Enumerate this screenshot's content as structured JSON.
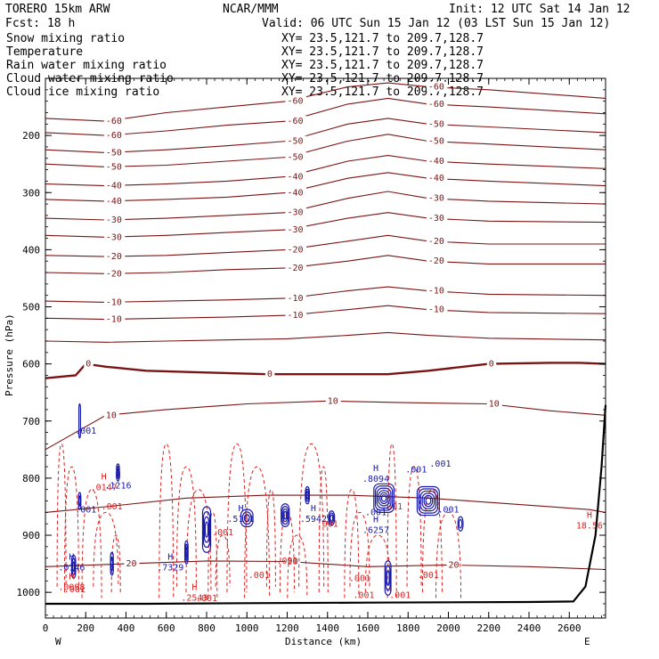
{
  "header": {
    "model": "TORERO  15km ARW",
    "org": "NCAR/MMM",
    "init": "Init: 12 UTC Sat 14 Jan 12",
    "fcst": "Fcst:   18 h",
    "valid": "Valid: 06 UTC Sun 15 Jan 12 (03 LST Sun 15 Jan 12)"
  },
  "legend": [
    {
      "label": "Snow mixing ratio",
      "color": "#000000",
      "xy": "XY=  23.5,121.7 to 209.7,128.7",
      "xy_color": "#000000"
    },
    {
      "label": "Temperature",
      "color": "#cc0000",
      "xy": "XY=  23.5,121.7 to 209.7,128.7",
      "xy_color": "#cc0000"
    },
    {
      "label": "Rain water mixing ratio",
      "color": "#cc0000",
      "xy": "XY=  23.5,121.7 to 209.7,128.7",
      "xy_color": "#cc0000"
    },
    {
      "label": "Cloud water mixing ratio",
      "color": "#1a1aaa",
      "xy": "XY=  23.5,121.7 to 209.7,128.7",
      "xy_color": "#1a1aaa"
    },
    {
      "label": "Cloud ice mixing ratio",
      "color": "#000000",
      "xy": "XY=  23.5,121.7 to 209.7,128.7",
      "xy_color": "#000000"
    }
  ],
  "chart_data": {
    "type": "contour-cross-section",
    "xlabel": "Distance (km)",
    "ylabel": "Pressure (hPa)",
    "xlim": [
      0,
      2780
    ],
    "ylim": [
      1045,
      100
    ],
    "x_ticks": [
      0,
      200,
      400,
      600,
      800,
      1000,
      1200,
      1400,
      1600,
      1800,
      2000,
      2200,
      2400,
      2600
    ],
    "y_ticks": [
      200,
      300,
      400,
      500,
      600,
      700,
      800,
      900,
      1000
    ],
    "end_labels": {
      "left": "W",
      "right": "E"
    },
    "colors": {
      "temperature": "#7a1414",
      "rain": "#dd2222",
      "cloud_water": "#1a1aaa",
      "terrain": "#000000"
    },
    "temperature_contours": [
      {
        "value": -60,
        "label": "-60",
        "points": [
          [
            0,
            170
          ],
          [
            300,
            175
          ],
          [
            600,
            160
          ],
          [
            900,
            150
          ],
          [
            1200,
            140
          ],
          [
            1500,
            115
          ],
          [
            1700,
            108
          ],
          [
            1900,
            115
          ],
          [
            2200,
            120
          ],
          [
            2780,
            135
          ]
        ]
      },
      {
        "value": -60,
        "label": "-60",
        "points": [
          [
            0,
            195
          ],
          [
            300,
            200
          ],
          [
            600,
            192
          ],
          [
            900,
            182
          ],
          [
            1200,
            175
          ],
          [
            1500,
            145
          ],
          [
            1700,
            135
          ],
          [
            1900,
            145
          ],
          [
            2200,
            150
          ],
          [
            2780,
            162
          ]
        ]
      },
      {
        "value": -50,
        "label": "-50",
        "points": [
          [
            0,
            225
          ],
          [
            300,
            230
          ],
          [
            600,
            225
          ],
          [
            900,
            218
          ],
          [
            1200,
            210
          ],
          [
            1500,
            180
          ],
          [
            1700,
            170
          ],
          [
            1900,
            180
          ],
          [
            2200,
            185
          ],
          [
            2780,
            195
          ]
        ]
      },
      {
        "value": -50,
        "label": "-50",
        "points": [
          [
            0,
            250
          ],
          [
            300,
            255
          ],
          [
            600,
            252
          ],
          [
            900,
            245
          ],
          [
            1200,
            238
          ],
          [
            1500,
            210
          ],
          [
            1700,
            198
          ],
          [
            1900,
            210
          ],
          [
            2200,
            215
          ],
          [
            2780,
            225
          ]
        ]
      },
      {
        "value": -40,
        "label": "-40",
        "points": [
          [
            0,
            285
          ],
          [
            300,
            288
          ],
          [
            600,
            285
          ],
          [
            900,
            280
          ],
          [
            1200,
            272
          ],
          [
            1500,
            245
          ],
          [
            1700,
            235
          ],
          [
            1900,
            245
          ],
          [
            2200,
            250
          ],
          [
            2780,
            258
          ]
        ]
      },
      {
        "value": -40,
        "label": "-40",
        "points": [
          [
            0,
            312
          ],
          [
            300,
            315
          ],
          [
            600,
            312
          ],
          [
            900,
            308
          ],
          [
            1200,
            300
          ],
          [
            1500,
            275
          ],
          [
            1700,
            265
          ],
          [
            1900,
            275
          ],
          [
            2200,
            280
          ],
          [
            2780,
            288
          ]
        ]
      },
      {
        "value": -30,
        "label": "-30",
        "points": [
          [
            0,
            345
          ],
          [
            300,
            348
          ],
          [
            600,
            345
          ],
          [
            900,
            340
          ],
          [
            1200,
            335
          ],
          [
            1500,
            310
          ],
          [
            1700,
            298
          ],
          [
            1900,
            310
          ],
          [
            2200,
            315
          ],
          [
            2780,
            320
          ]
        ]
      },
      {
        "value": -30,
        "label": "-30",
        "points": [
          [
            0,
            375
          ],
          [
            300,
            378
          ],
          [
            600,
            375
          ],
          [
            900,
            370
          ],
          [
            1200,
            365
          ],
          [
            1500,
            345
          ],
          [
            1700,
            335
          ],
          [
            1900,
            345
          ],
          [
            2200,
            350
          ],
          [
            2780,
            352
          ]
        ]
      },
      {
        "value": -20,
        "label": "-20",
        "points": [
          [
            0,
            410
          ],
          [
            300,
            412
          ],
          [
            600,
            410
          ],
          [
            900,
            405
          ],
          [
            1200,
            400
          ],
          [
            1500,
            385
          ],
          [
            1700,
            375
          ],
          [
            1900,
            385
          ],
          [
            2200,
            390
          ],
          [
            2780,
            390
          ]
        ]
      },
      {
        "value": -20,
        "label": "-20",
        "points": [
          [
            0,
            440
          ],
          [
            300,
            442
          ],
          [
            600,
            440
          ],
          [
            900,
            435
          ],
          [
            1200,
            432
          ],
          [
            1500,
            420
          ],
          [
            1700,
            410
          ],
          [
            1900,
            420
          ],
          [
            2200,
            425
          ],
          [
            2780,
            425
          ]
        ]
      },
      {
        "value": -10,
        "label": "-10",
        "points": [
          [
            0,
            490
          ],
          [
            300,
            492
          ],
          [
            600,
            490
          ],
          [
            900,
            488
          ],
          [
            1200,
            485
          ],
          [
            1500,
            472
          ],
          [
            1700,
            465
          ],
          [
            1900,
            472
          ],
          [
            2200,
            478
          ],
          [
            2780,
            480
          ]
        ]
      },
      {
        "value": -10,
        "label": "-10",
        "points": [
          [
            0,
            520
          ],
          [
            300,
            522
          ],
          [
            600,
            520
          ],
          [
            900,
            518
          ],
          [
            1200,
            515
          ],
          [
            1500,
            505
          ],
          [
            1700,
            498
          ],
          [
            1900,
            505
          ],
          [
            2200,
            510
          ],
          [
            2780,
            512
          ]
        ]
      },
      {
        "value": -10,
        "label": "",
        "points": [
          [
            0,
            560
          ],
          [
            300,
            562
          ],
          [
            600,
            560
          ],
          [
            900,
            558
          ],
          [
            1200,
            556
          ],
          [
            1500,
            550
          ],
          [
            1700,
            545
          ],
          [
            1900,
            550
          ],
          [
            2200,
            555
          ],
          [
            2780,
            558
          ]
        ]
      },
      {
        "value": 0,
        "label": "0",
        "points": [
          [
            0,
            625
          ],
          [
            150,
            620
          ],
          [
            200,
            600
          ],
          [
            300,
            605
          ],
          [
            500,
            612
          ],
          [
            800,
            615
          ],
          [
            1100,
            618
          ],
          [
            1400,
            618
          ],
          [
            1700,
            618
          ],
          [
            1900,
            612
          ],
          [
            2200,
            600
          ],
          [
            2500,
            598
          ],
          [
            2650,
            598
          ],
          [
            2780,
            600
          ]
        ]
      },
      {
        "value": 10,
        "label": "10",
        "points": [
          [
            0,
            750
          ],
          [
            300,
            690
          ],
          [
            600,
            680
          ],
          [
            1000,
            670
          ],
          [
            1400,
            665
          ],
          [
            1800,
            668
          ],
          [
            2200,
            670
          ],
          [
            2500,
            682
          ],
          [
            2780,
            690
          ]
        ]
      },
      {
        "value": 10,
        "label": "",
        "points": [
          [
            0,
            860
          ],
          [
            300,
            850
          ],
          [
            700,
            835
          ],
          [
            1100,
            830
          ],
          [
            1500,
            830
          ],
          [
            1900,
            835
          ],
          [
            2300,
            845
          ],
          [
            2700,
            855
          ],
          [
            2780,
            860
          ]
        ]
      },
      {
        "value": 20,
        "label": "20",
        "points": [
          [
            0,
            955
          ],
          [
            400,
            950
          ],
          [
            800,
            945
          ],
          [
            1200,
            946
          ],
          [
            1600,
            955
          ],
          [
            2000,
            952
          ],
          [
            2400,
            955
          ],
          [
            2780,
            960
          ]
        ]
      }
    ],
    "rain_contours": [
      {
        "label": ".001",
        "x": 145,
        "p": 1000
      },
      {
        "label": ".001",
        "x": 330,
        "p": 855
      },
      {
        "label": ".001",
        "x": 880,
        "p": 900
      },
      {
        "label": ".001",
        "x": 1060,
        "p": 975
      },
      {
        "label": ".001",
        "x": 1200,
        "p": 950
      },
      {
        "label": ".001",
        "x": 1560,
        "p": 980
      },
      {
        "label": ".001",
        "x": 1580,
        "p": 1010
      },
      {
        "label": ".001",
        "x": 1760,
        "p": 1010
      },
      {
        "label": ".001",
        "x": 1900,
        "p": 975
      },
      {
        "label": ".001",
        "x": 800,
        "p": 1015
      },
      {
        "label": ".001",
        "x": 1400,
        "p": 885
      },
      {
        "label": ".001",
        "x": 1720,
        "p": 855
      }
    ],
    "rain_maxima": [
      {
        "label": "H",
        "value": ".0147",
        "x": 290,
        "p": 815
      },
      {
        "label": "H",
        "value": ".0098",
        "x": 130,
        "p": 990
      },
      {
        "label": "H",
        "value": ".2543",
        "x": 740,
        "p": 1008
      },
      {
        "label": "H",
        "value": "18.56",
        "x": 2700,
        "p": 882
      }
    ],
    "cloud_water_maxima": [
      {
        "label": "H",
        "value": ".1216",
        "x": 360,
        "p": 812
      },
      {
        "label": "H",
        "value": ".0146",
        "x": 130,
        "p": 955
      },
      {
        "label": "H",
        "value": ".7329",
        "x": 620,
        "p": 955
      },
      {
        "label": "H",
        "value": ".5161",
        "x": 970,
        "p": 870
      },
      {
        "label": "H",
        "value": ".5942",
        "x": 1330,
        "p": 870
      },
      {
        "label": "H",
        "value": ".8094",
        "x": 1640,
        "p": 800
      },
      {
        "label": "H",
        "value": ".6257",
        "x": 1640,
        "p": 890
      }
    ],
    "cloud_water_labels": [
      {
        "label": ".001",
        "x": 200,
        "p": 722
      },
      {
        "label": ".001",
        "x": 200,
        "p": 860
      },
      {
        "label": ".001",
        "x": 1840,
        "p": 790
      },
      {
        "label": ".001",
        "x": 1960,
        "p": 780
      },
      {
        "label": ".001",
        "x": 1640,
        "p": 865
      },
      {
        "label": ".001",
        "x": 2000,
        "p": 860
      }
    ]
  }
}
